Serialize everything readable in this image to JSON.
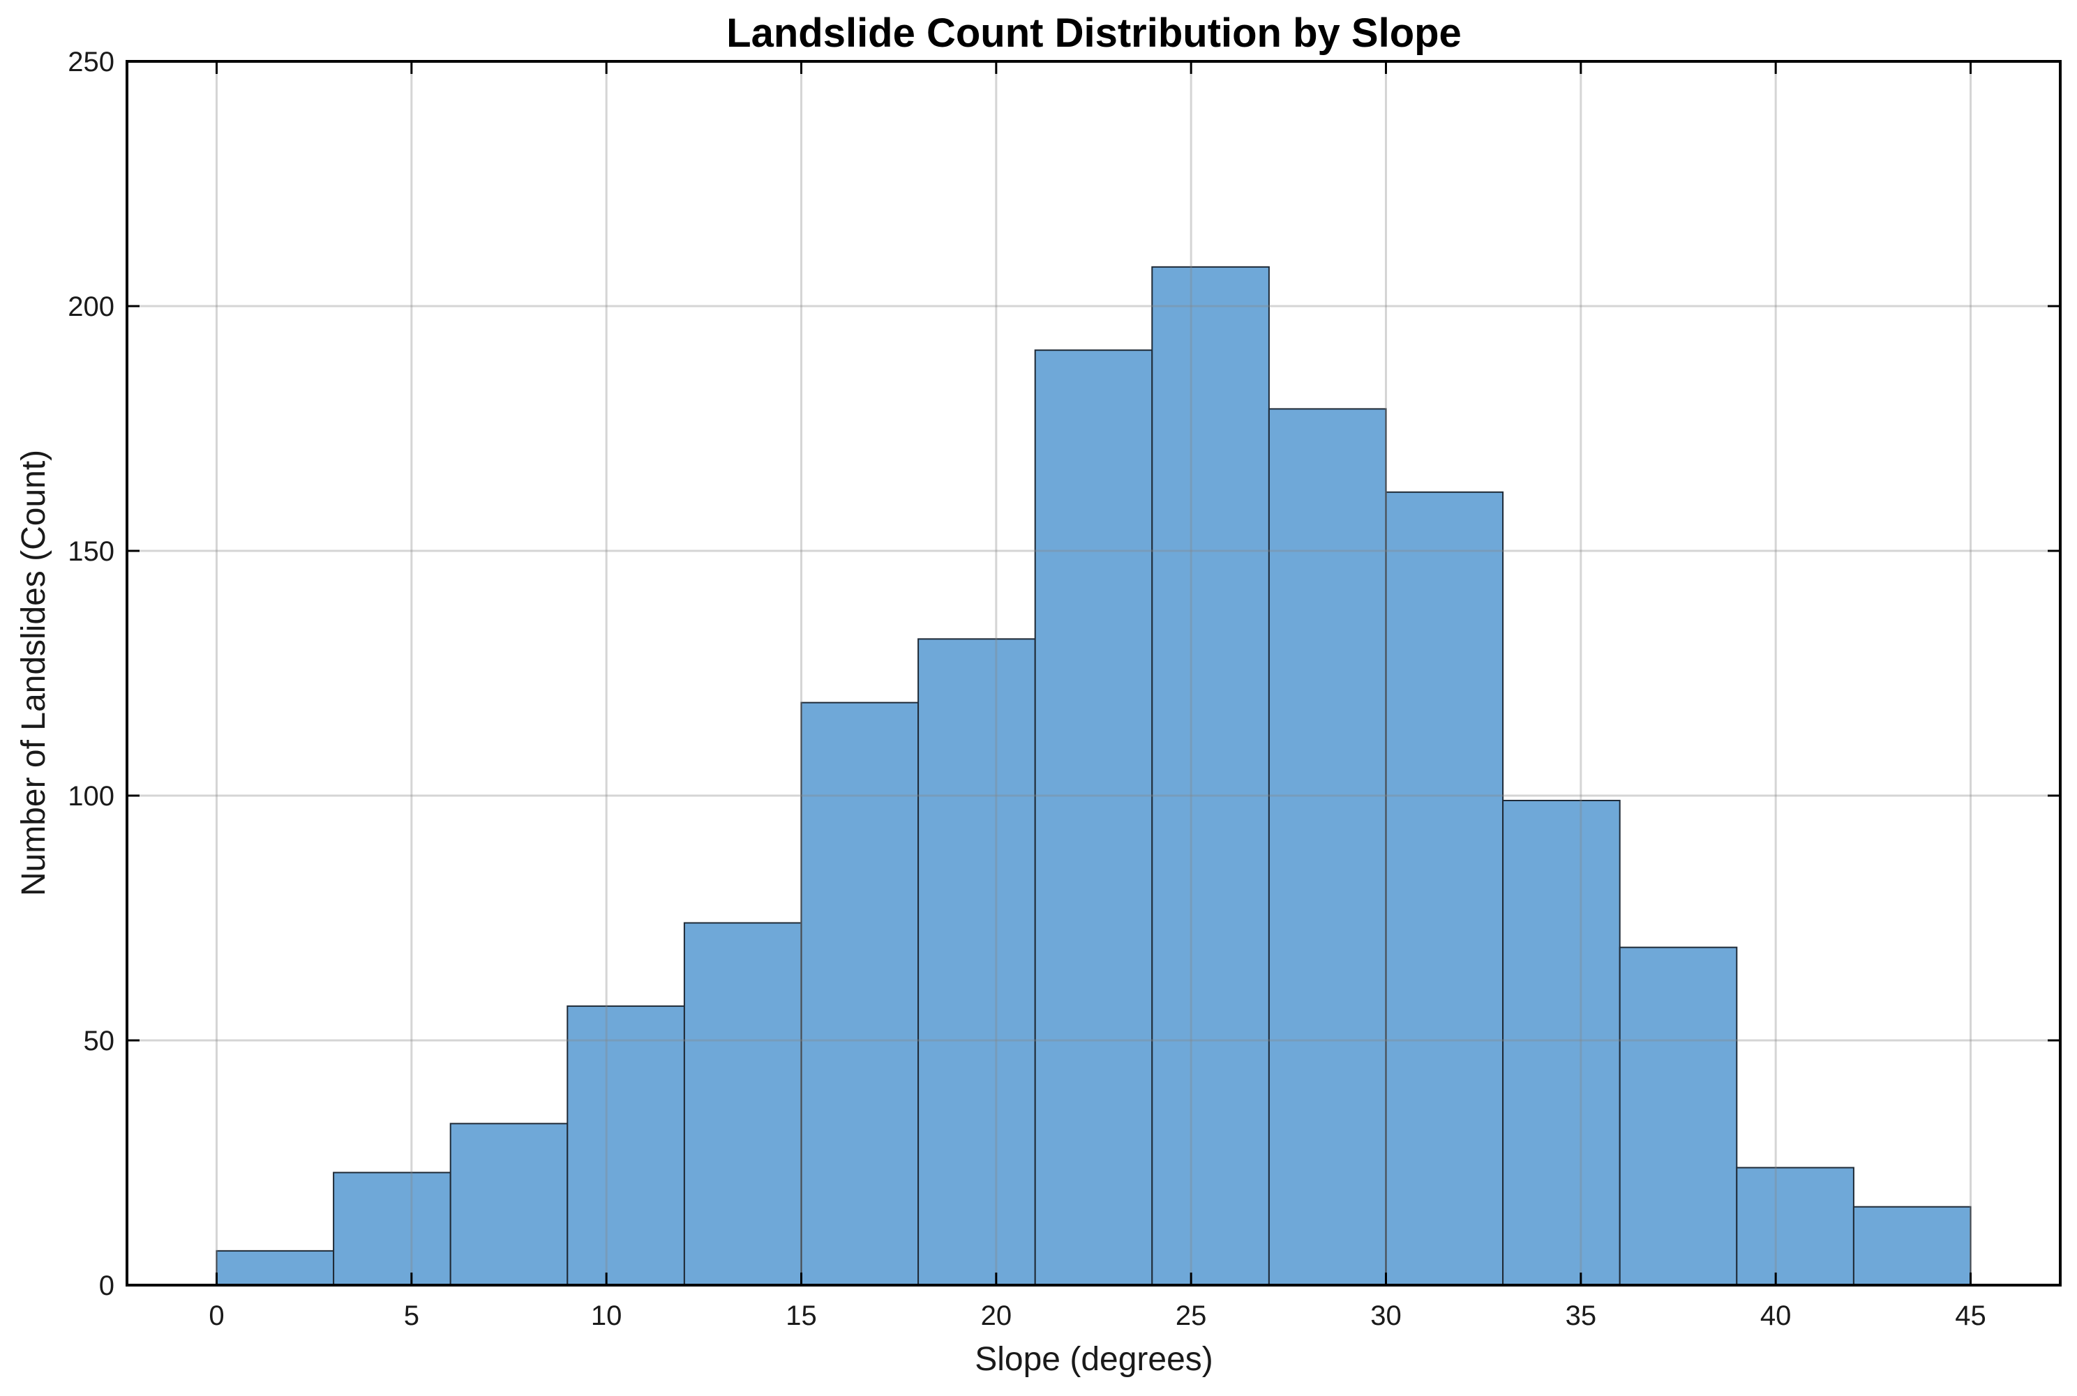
{
  "chart_data": {
    "type": "bar",
    "title": "Landslide Count Distribution by Slope",
    "xlabel": "Slope (degrees)",
    "ylabel": "Number of Landslides (Count)",
    "xlim": [
      -2.3,
      47.3
    ],
    "ylim": [
      0,
      250
    ],
    "xticks": [
      0,
      5,
      10,
      15,
      20,
      25,
      30,
      35,
      40,
      45
    ],
    "yticks": [
      0,
      50,
      100,
      150,
      200,
      250
    ],
    "xtick_labels": [
      "0",
      "5",
      "10",
      "15",
      "20",
      "25",
      "30",
      "35",
      "40",
      "45"
    ],
    "ytick_labels": [
      "0",
      "50",
      "100",
      "150",
      "200",
      "250"
    ],
    "bin_edges": [
      0,
      3,
      6,
      9,
      12,
      15,
      18,
      21,
      24,
      27,
      30,
      33,
      36,
      39,
      42,
      45
    ],
    "values": [
      7,
      23,
      33,
      57,
      74,
      119,
      132,
      191,
      208,
      179,
      162,
      99,
      69,
      24,
      16
    ],
    "grid": true,
    "bar_color": "#6fa8d8",
    "bar_edge_color": "#1f2a36",
    "grid_color": "#c8c8c8",
    "axis_color": "#000000"
  }
}
